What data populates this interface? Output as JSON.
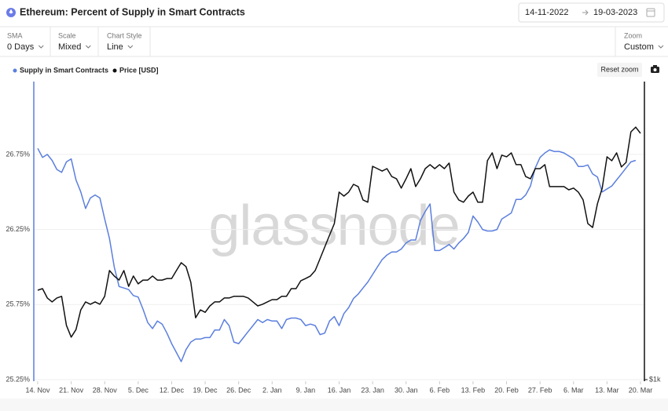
{
  "header": {
    "title": "Ethereum: Percent of Supply in Smart Contracts",
    "date_from": "14-11-2022",
    "date_to": "19-03-2023"
  },
  "controls": [
    {
      "label": "SMA",
      "value": "0 Days"
    },
    {
      "label": "Scale",
      "value": "Mixed"
    },
    {
      "label": "Chart Style",
      "value": "Line"
    },
    {
      "label": "Zoom",
      "value": "Custom"
    }
  ],
  "reset_button": "Reset zoom",
  "watermark": "glassnode",
  "chart_data": {
    "type": "line",
    "grid": true,
    "y2scale": "log",
    "categories": [
      "14. Nov",
      null,
      null,
      null,
      null,
      null,
      null,
      "21. Nov",
      null,
      null,
      null,
      null,
      null,
      null,
      "28. Nov",
      null,
      null,
      null,
      null,
      null,
      null,
      "5. Dec",
      null,
      null,
      null,
      null,
      null,
      null,
      "12. Dec",
      null,
      null,
      null,
      null,
      null,
      null,
      "19. Dec",
      null,
      null,
      null,
      null,
      null,
      null,
      "26. Dec",
      null,
      null,
      null,
      null,
      null,
      null,
      "2. Jan",
      null,
      null,
      null,
      null,
      null,
      null,
      "9. Jan",
      null,
      null,
      null,
      null,
      null,
      null,
      "16. Jan",
      null,
      null,
      null,
      null,
      null,
      null,
      "23. Jan",
      null,
      null,
      null,
      null,
      null,
      null,
      "30. Jan",
      null,
      null,
      null,
      null,
      null,
      null,
      "6. Feb",
      null,
      null,
      null,
      null,
      null,
      null,
      "13. Feb",
      null,
      null,
      null,
      null,
      null,
      null,
      "20. Feb",
      null,
      null,
      null,
      null,
      null,
      null,
      "27. Feb",
      null,
      null,
      null,
      null,
      null,
      null,
      "6. Mar",
      null,
      null,
      null,
      null,
      null,
      null,
      "13. Mar",
      null,
      null,
      null,
      null,
      null,
      null,
      "20. Mar"
    ],
    "ylim": [
      25.25,
      27.23
    ],
    "yticks": [
      {
        "value": 25.25,
        "label": "25.25%"
      },
      {
        "value": 25.75,
        "label": "25.75%"
      },
      {
        "value": 26.25,
        "label": "26.25%"
      },
      {
        "value": 26.75,
        "label": "26.75%"
      }
    ],
    "y2lim": [
      1000,
      2100
    ],
    "y2ticks": [
      {
        "value": 1000,
        "label": "$1k"
      }
    ],
    "series": [
      {
        "name": "Supply in Smart Contracts",
        "color": "#5b7fde",
        "values": [
          26.79,
          26.73,
          26.75,
          26.71,
          26.65,
          26.63,
          26.7,
          26.72,
          26.58,
          26.5,
          26.39,
          26.46,
          26.48,
          26.46,
          26.32,
          26.19,
          26.0,
          25.87,
          25.86,
          25.85,
          25.81,
          25.8,
          25.72,
          25.63,
          25.59,
          25.64,
          25.62,
          25.56,
          25.49,
          25.43,
          25.37,
          25.45,
          25.5,
          25.52,
          25.52,
          25.53,
          25.53,
          25.58,
          25.58,
          25.65,
          25.61,
          25.5,
          25.49,
          25.53,
          25.57,
          25.61,
          25.65,
          25.63,
          25.65,
          25.64,
          25.64,
          25.59,
          25.65,
          25.66,
          25.66,
          25.65,
          25.61,
          25.62,
          25.61,
          25.55,
          25.56,
          25.64,
          25.67,
          25.61,
          25.69,
          25.73,
          25.79,
          25.82,
          25.86,
          25.9,
          25.95,
          26.0,
          26.05,
          26.08,
          26.1,
          26.1,
          26.12,
          26.16,
          26.18,
          26.18,
          26.31,
          26.37,
          26.42,
          26.11,
          26.11,
          26.13,
          26.15,
          26.12,
          26.16,
          26.19,
          26.23,
          26.34,
          26.3,
          26.25,
          26.24,
          26.24,
          26.25,
          26.32,
          26.34,
          26.36,
          26.45,
          26.45,
          26.48,
          26.54,
          26.66,
          26.73,
          26.76,
          26.78,
          26.77,
          26.77,
          26.76,
          26.74,
          26.72,
          26.67,
          26.67,
          26.68,
          26.62,
          26.6,
          26.5,
          26.52,
          26.54,
          26.58,
          26.62,
          26.66,
          26.7,
          26.71,
          null
        ]
      },
      {
        "name": "Price [USD]",
        "color": "#111111",
        "axis": "y2",
        "values": [
          1250,
          1255,
          1226,
          1214,
          1226,
          1231,
          1145,
          1112,
          1133,
          1190,
          1214,
          1207,
          1214,
          1207,
          1231,
          1313,
          1295,
          1282,
          1313,
          1262,
          1295,
          1270,
          1282,
          1282,
          1295,
          1282,
          1282,
          1287,
          1287,
          1313,
          1339,
          1326,
          1275,
          1167,
          1190,
          1183,
          1202,
          1214,
          1214,
          1226,
          1226,
          1231,
          1231,
          1231,
          1226,
          1214,
          1202,
          1207,
          1214,
          1221,
          1221,
          1231,
          1231,
          1255,
          1255,
          1280,
          1287,
          1295,
          1313,
          1352,
          1392,
          1434,
          1476,
          1597,
          1581,
          1597,
          1628,
          1619,
          1566,
          1557,
          1703,
          1693,
          1683,
          1693,
          1660,
          1651,
          1613,
          1651,
          1693,
          1619,
          1651,
          1693,
          1710,
          1693,
          1710,
          1693,
          1717,
          1597,
          1566,
          1557,
          1581,
          1597,
          1557,
          1557,
          1727,
          1761,
          1693,
          1751,
          1744,
          1761,
          1710,
          1710,
          1660,
          1651,
          1693,
          1693,
          1710,
          1619,
          1619,
          1619,
          1619,
          1606,
          1613,
          1597,
          1566,
          1476,
          1462,
          1551,
          1613,
          1744,
          1727,
          1761,
          1700,
          1720,
          1856,
          1878,
          1849
        ]
      }
    ]
  }
}
